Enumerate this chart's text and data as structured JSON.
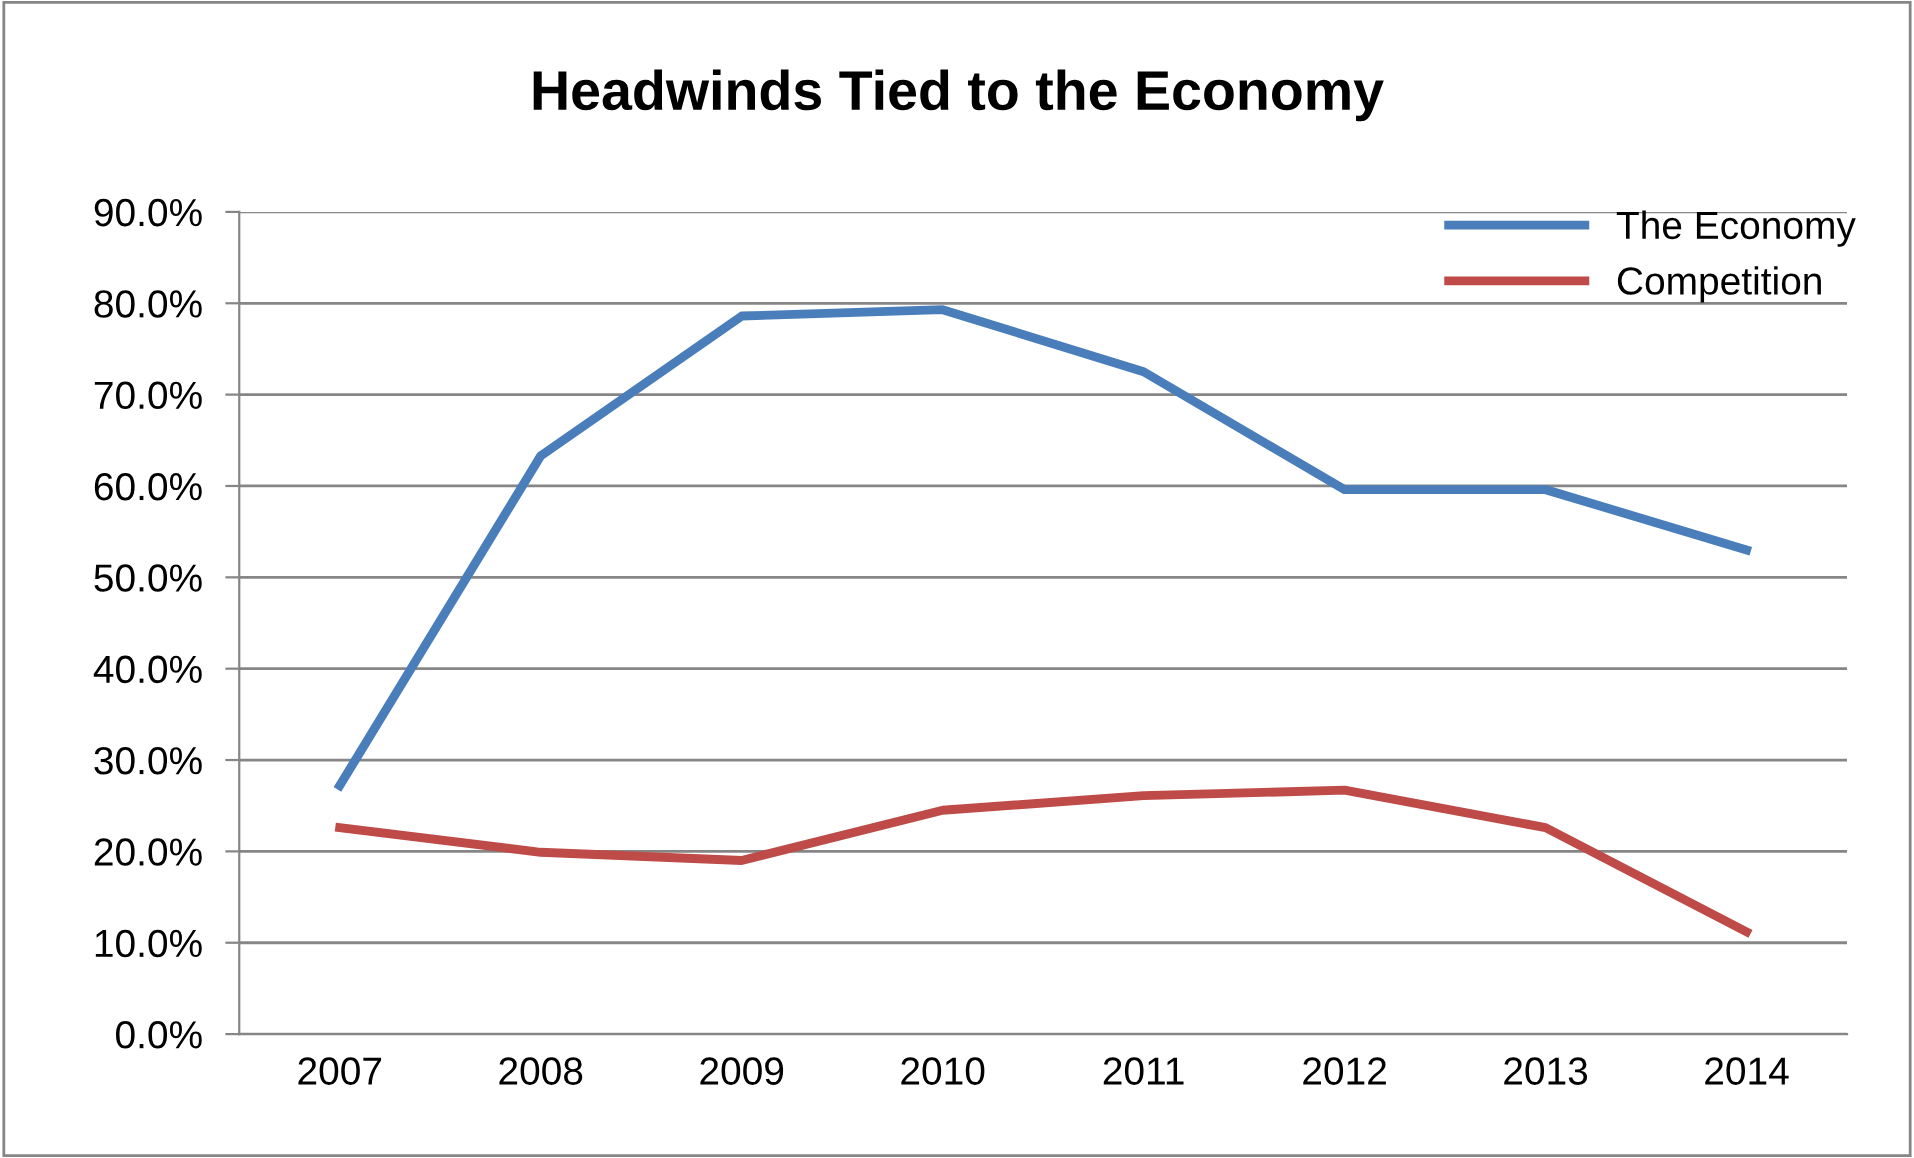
{
  "chart_data": {
    "type": "line",
    "title": "Headwinds Tied to the Economy",
    "categories": [
      "2007",
      "2008",
      "2009",
      "2010",
      "2011",
      "2012",
      "2013",
      "2014"
    ],
    "series": [
      {
        "name": "The Economy",
        "color": "#4a7ebb",
        "values": [
          27.2,
          63.3,
          78.6,
          79.3,
          72.5,
          59.6,
          59.6,
          53.0
        ]
      },
      {
        "name": "Competition",
        "color": "#be4b48",
        "values": [
          22.6,
          19.9,
          19.0,
          24.5,
          26.1,
          26.7,
          22.6,
          11.2
        ]
      }
    ],
    "ylim": [
      0,
      90
    ],
    "yticks": [
      {
        "value": 0,
        "label": "0.0%"
      },
      {
        "value": 10,
        "label": "10.0%"
      },
      {
        "value": 20,
        "label": "20.0%"
      },
      {
        "value": 30,
        "label": "30.0%"
      },
      {
        "value": 40,
        "label": "40.0%"
      },
      {
        "value": 50,
        "label": "50.0%"
      },
      {
        "value": 60,
        "label": "60.0%"
      },
      {
        "value": 70,
        "label": "70.0%"
      },
      {
        "value": 80,
        "label": "80.0%"
      },
      {
        "value": 90,
        "label": "90.0%"
      }
    ],
    "grid": "y",
    "legend": "top right",
    "marker": "none",
    "line_style": "solid"
  }
}
